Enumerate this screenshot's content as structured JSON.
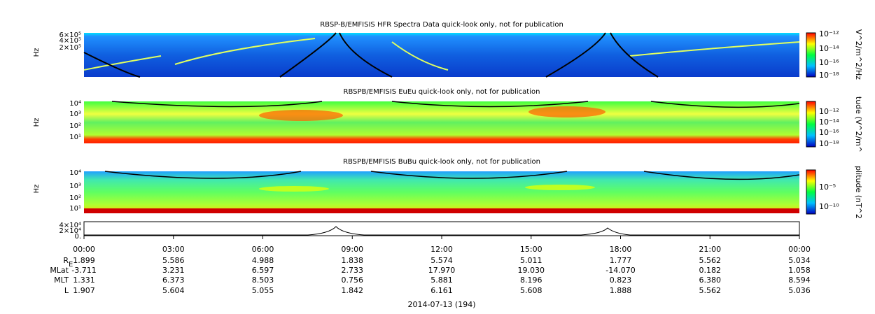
{
  "panels": [
    {
      "title": "RBSP-B/EMFISIS  HFR Spectra Data quick-look only, not for publication",
      "ylabel": "Hz",
      "yticks": [
        "6×10⁵",
        "4×10⁵",
        "2×10⁵"
      ],
      "colorbar_label": "V^2/m^2/Hz",
      "colorbar_ticks": [
        "10⁻¹²",
        "10⁻¹⁴",
        "10⁻¹⁶",
        "10⁻¹⁸"
      ]
    },
    {
      "title": "RBSPB/EMFISIS  EuEu quick-look only, not for publication",
      "ylabel": "Hz",
      "yticks": [
        "10⁴",
        "10³",
        "10²",
        "10¹"
      ],
      "colorbar_label": "tude (V^2/m^",
      "colorbar_ticks": [
        "10⁻¹²",
        "10⁻¹⁴",
        "10⁻¹⁶",
        "10⁻¹⁸"
      ]
    },
    {
      "title": "RBSPB/EMFISIS  BuBu quick-look only, not for publication",
      "ylabel": "Hz",
      "yticks": [
        "10⁴",
        "10³",
        "10²",
        "10¹"
      ],
      "colorbar_label": "plitude (nT^2",
      "colorbar_ticks": [
        "10⁻⁵",
        "10⁻¹⁰"
      ]
    },
    {
      "yticks": [
        "4×10⁴",
        "2×10⁴",
        "0."
      ]
    }
  ],
  "ephemeris": {
    "times": [
      "00:00",
      "03:00",
      "06:00",
      "09:00",
      "12:00",
      "15:00",
      "18:00",
      "21:00",
      "00:00"
    ],
    "rows": [
      {
        "label": "R",
        "sub": "E",
        "values": [
          "1.899",
          "5.586",
          "4.988",
          "1.838",
          "5.574",
          "5.011",
          "1.777",
          "5.562",
          "5.034"
        ]
      },
      {
        "label": "MLat",
        "values": [
          "-3.711",
          "3.231",
          "6.597",
          "2.733",
          "17.970",
          "19.030",
          "-14.070",
          "0.182",
          "1.058"
        ]
      },
      {
        "label": "MLT",
        "values": [
          "1.331",
          "6.373",
          "8.503",
          "0.756",
          "5.881",
          "8.196",
          "0.823",
          "6.380",
          "8.594"
        ]
      },
      {
        "label": "L",
        "values": [
          "1.907",
          "5.604",
          "5.055",
          "1.842",
          "6.161",
          "5.608",
          "1.888",
          "5.562",
          "5.036"
        ]
      }
    ],
    "date": "2014-07-13 (194)"
  }
}
